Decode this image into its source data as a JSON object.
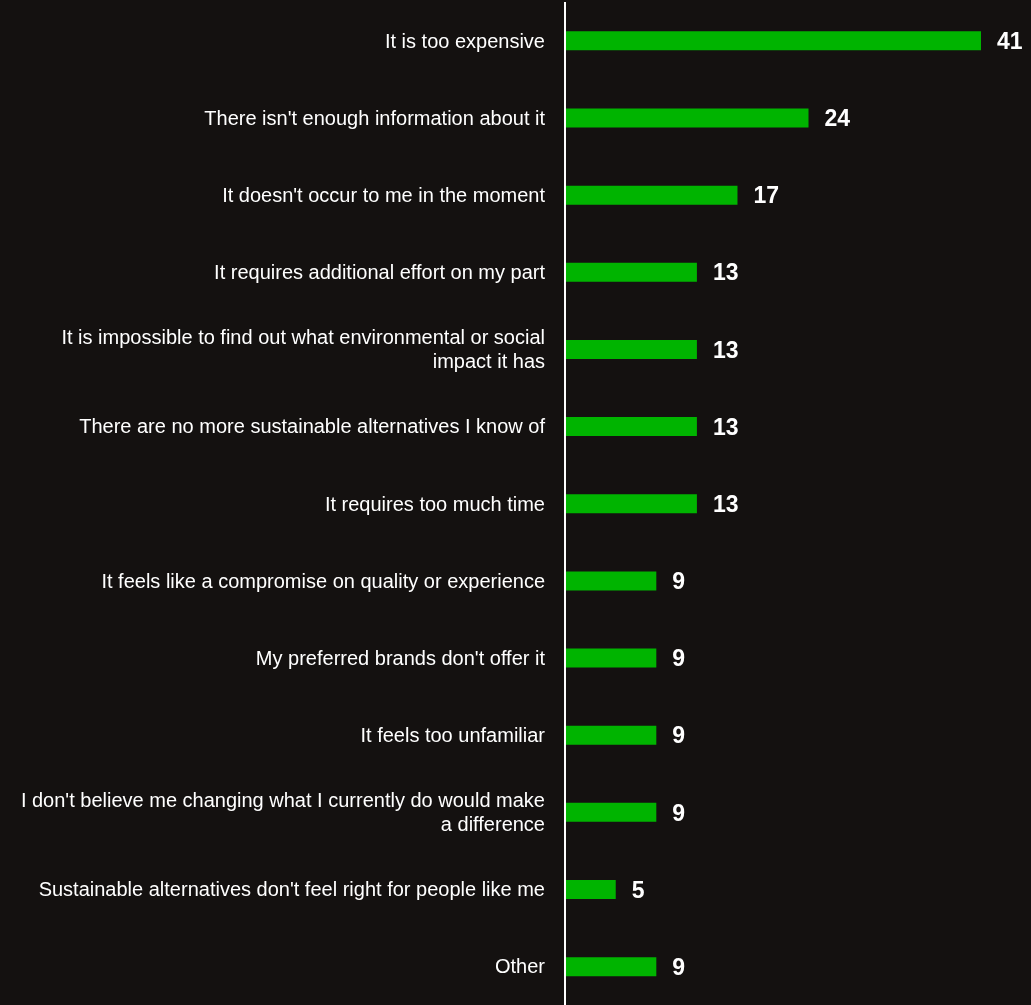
{
  "chart_data": {
    "type": "bar",
    "orientation": "horizontal",
    "categories": [
      "It is too expensive",
      "There isn't enough information about it",
      "It doesn't occur to me in the moment",
      "It requires additional effort on my part",
      "It is impossible to find out what environmental or social impact it has",
      "There are no more sustainable alternatives I know of",
      "It requires too much time",
      "It feels like a compromise on quality or experience",
      "My preferred brands don't offer it",
      "It feels too unfamiliar",
      "I don't believe me changing what I currently do would make a difference",
      "Sustainable alternatives don't feel right for people like me",
      "Other"
    ],
    "values": [
      41,
      24,
      17,
      13,
      13,
      13,
      13,
      9,
      9,
      9,
      9,
      5,
      9
    ],
    "color": "#00b400",
    "data_labels": true,
    "grid": false,
    "legend": false
  }
}
